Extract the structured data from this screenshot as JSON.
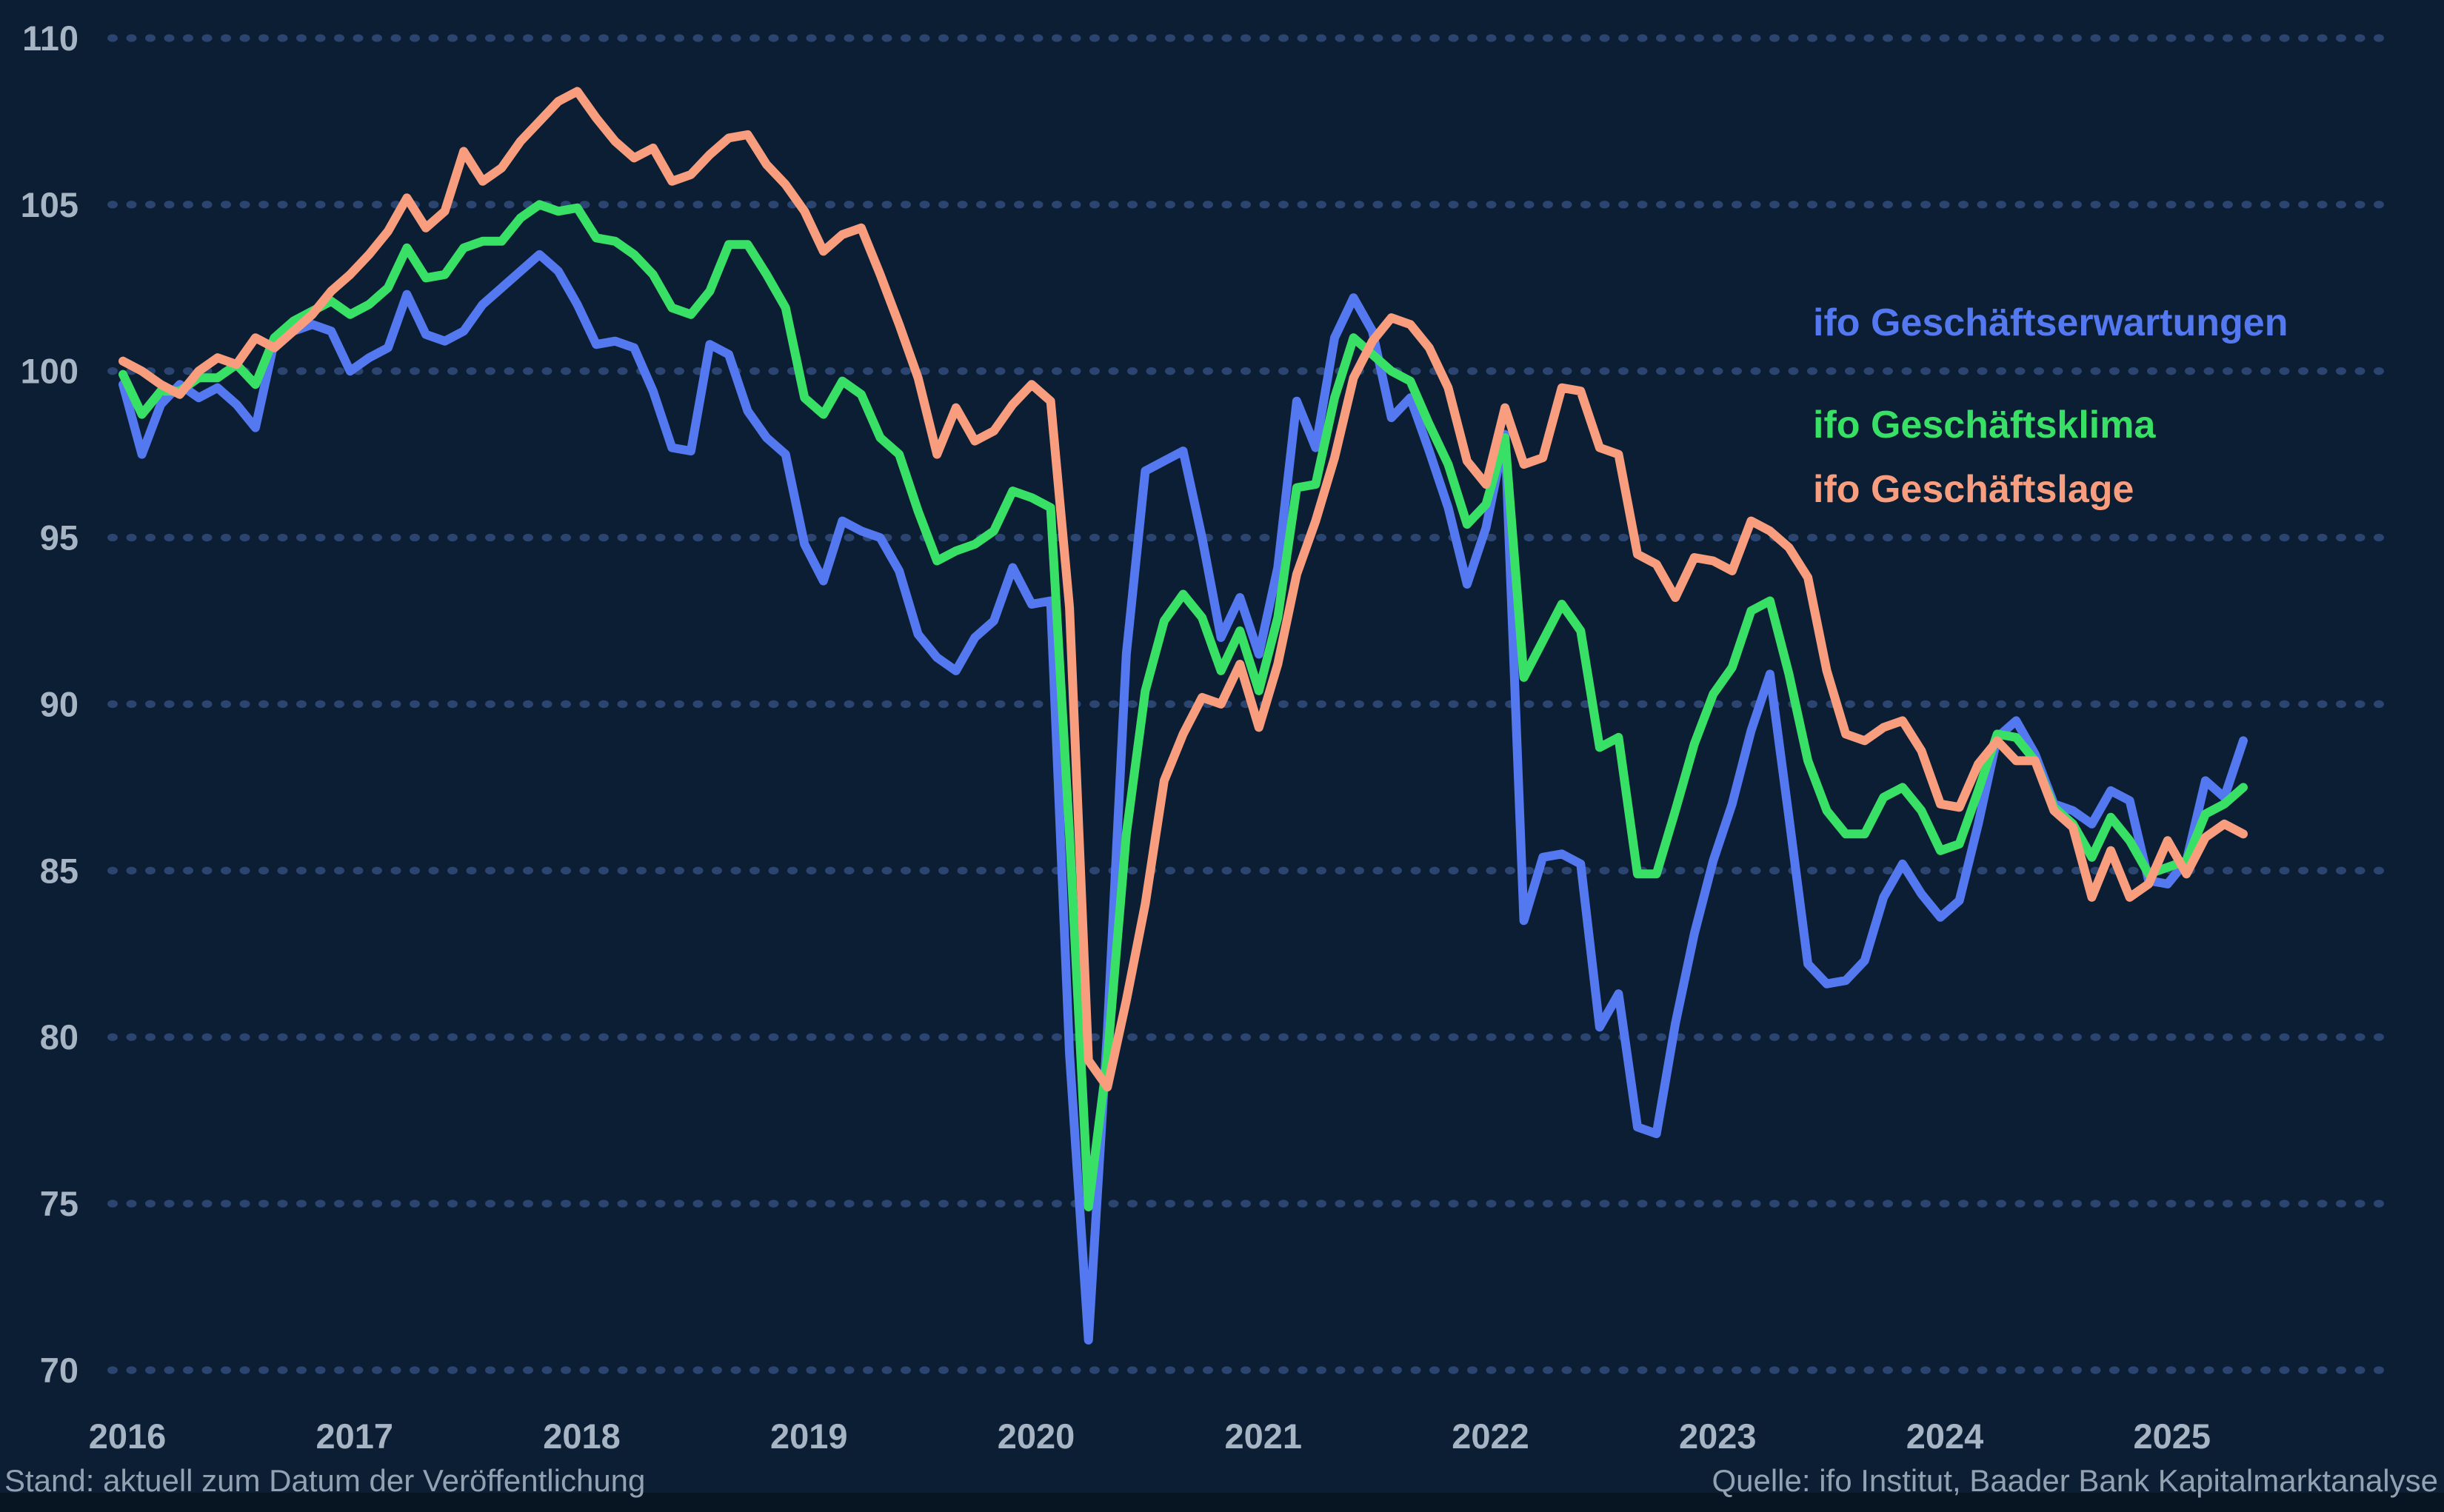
{
  "page": {
    "background": "#0b1e33",
    "bottom_strip_color": "#071422"
  },
  "legend": {
    "items": [
      {
        "id": "erwartungen",
        "label": "ifo Geschäftserwartungen",
        "color": "#5478f0"
      },
      {
        "id": "klima",
        "label": "ifo Geschäftsklima",
        "color": "#38e166"
      },
      {
        "id": "lage",
        "label": "ifo Geschäftslage",
        "color": "#f89d7d"
      }
    ]
  },
  "footnotes": {
    "left": "Stand: aktuell zum Datum der Veröffentlichung",
    "right": "Quelle: ifo Institut, Baader Bank Kapitalmarktanalyse"
  },
  "axis": {
    "y_ticks": [
      "110",
      "105",
      "100",
      "95",
      "90",
      "85",
      "80",
      "75",
      "70"
    ],
    "x_ticks": [
      "2016",
      "2017",
      "2018",
      "2019",
      "2020",
      "2021",
      "2022",
      "2023",
      "2024",
      "2025"
    ],
    "label_color": "#a6b4c4",
    "grid_dot_color": "#2b4470"
  },
  "chart_data": {
    "type": "line",
    "title": "",
    "xlabel": "",
    "ylabel": "",
    "x_unit": "month",
    "x_start": "2016-01",
    "x_end": "2025-05",
    "points_per_series": 113,
    "ylim": [
      70,
      110
    ],
    "grid": "dotted-horizontal",
    "legend_position": "right-middle",
    "series": [
      {
        "name": "ifo Geschäftserwartungen",
        "color": "#5478f0",
        "values": [
          99.6,
          97.5,
          99.0,
          99.6,
          99.2,
          99.5,
          99.0,
          98.3,
          100.9,
          101.2,
          101.4,
          101.2,
          100.0,
          100.4,
          100.7,
          102.3,
          101.1,
          100.9,
          101.2,
          102.0,
          102.5,
          103.0,
          103.5,
          103.0,
          102.0,
          100.8,
          100.9,
          100.7,
          99.4,
          97.7,
          97.6,
          100.8,
          100.5,
          98.8,
          98.0,
          97.5,
          94.8,
          93.7,
          95.5,
          95.2,
          95.0,
          94.0,
          92.1,
          91.4,
          91.0,
          92.0,
          92.5,
          94.1,
          93.0,
          93.1,
          79.5,
          70.9,
          80.2,
          91.5,
          97.0,
          97.3,
          97.6,
          95.0,
          92.0,
          93.2,
          91.5,
          94.1,
          99.1,
          97.7,
          101.0,
          102.2,
          101.2,
          98.6,
          99.2,
          97.6,
          95.9,
          93.6,
          95.3,
          98.1,
          83.5,
          85.4,
          85.5,
          85.2,
          80.3,
          81.3,
          77.3,
          77.1,
          80.4,
          83.1,
          85.3,
          87.0,
          89.2,
          90.9,
          86.6,
          82.2,
          81.6,
          81.7,
          82.3,
          84.2,
          85.2,
          84.3,
          83.6,
          84.1,
          86.4,
          89.0,
          89.5,
          88.5,
          87.0,
          86.8,
          86.4,
          87.4,
          87.1,
          84.7,
          84.6,
          85.3,
          87.7,
          87.2,
          88.9
        ]
      },
      {
        "name": "ifo Geschäftsklima",
        "color": "#38e166",
        "values": [
          99.9,
          98.7,
          99.4,
          99.4,
          99.8,
          99.8,
          100.2,
          99.6,
          101.0,
          101.5,
          101.8,
          102.1,
          101.7,
          102.0,
          102.5,
          103.7,
          102.8,
          102.9,
          103.7,
          103.9,
          103.9,
          104.6,
          105.0,
          104.8,
          104.9,
          104.0,
          103.9,
          103.5,
          102.9,
          101.9,
          101.7,
          102.4,
          103.8,
          103.8,
          102.9,
          101.9,
          99.2,
          98.7,
          99.7,
          99.3,
          98.0,
          97.5,
          95.8,
          94.3,
          94.6,
          94.8,
          95.2,
          96.4,
          96.2,
          95.9,
          86.1,
          74.9,
          79.4,
          86.1,
          90.4,
          92.5,
          93.3,
          92.6,
          91.0,
          92.2,
          90.4,
          92.6,
          96.5,
          96.6,
          99.2,
          101.0,
          100.5,
          100.0,
          99.7,
          98.4,
          97.2,
          95.4,
          96.0,
          98.0,
          90.8,
          91.9,
          93.0,
          92.2,
          88.7,
          89.0,
          84.9,
          84.9,
          86.8,
          88.8,
          90.3,
          91.1,
          92.8,
          93.1,
          90.9,
          88.3,
          86.8,
          86.1,
          86.1,
          87.2,
          87.5,
          86.8,
          85.6,
          85.8,
          87.4,
          89.1,
          89.0,
          88.3,
          86.9,
          86.4,
          85.4,
          86.6,
          85.9,
          84.9,
          85.1,
          85.3,
          86.7,
          87.0,
          87.5
        ]
      },
      {
        "name": "ifo Geschäftslage",
        "color": "#f89d7d",
        "values": [
          100.3,
          100.0,
          99.6,
          99.3,
          100.0,
          100.4,
          100.2,
          101.0,
          100.7,
          101.2,
          101.7,
          102.4,
          102.9,
          103.5,
          104.2,
          105.2,
          104.3,
          104.8,
          106.6,
          105.7,
          106.1,
          106.9,
          107.5,
          108.1,
          108.4,
          107.6,
          106.9,
          106.4,
          106.7,
          105.7,
          105.9,
          106.5,
          107.0,
          107.1,
          106.2,
          105.6,
          104.8,
          103.6,
          104.1,
          104.3,
          102.9,
          101.4,
          99.8,
          97.5,
          98.9,
          97.9,
          98.2,
          99.0,
          99.6,
          99.1,
          92.9,
          79.3,
          78.5,
          81.1,
          84.0,
          87.7,
          89.1,
          90.2,
          90.0,
          91.2,
          89.3,
          91.2,
          93.9,
          95.5,
          97.4,
          99.8,
          100.9,
          101.6,
          101.4,
          100.7,
          99.5,
          97.3,
          96.6,
          98.9,
          97.2,
          97.4,
          99.5,
          99.4,
          97.7,
          97.5,
          94.5,
          94.2,
          93.2,
          94.4,
          94.3,
          94.0,
          95.5,
          95.2,
          94.7,
          93.8,
          91.0,
          89.1,
          88.9,
          89.3,
          89.5,
          88.6,
          87.0,
          86.9,
          88.2,
          88.9,
          88.3,
          88.3,
          86.8,
          86.3,
          84.2,
          85.6,
          84.2,
          84.6,
          85.9,
          84.9,
          86.0,
          86.4,
          86.1
        ]
      }
    ]
  }
}
